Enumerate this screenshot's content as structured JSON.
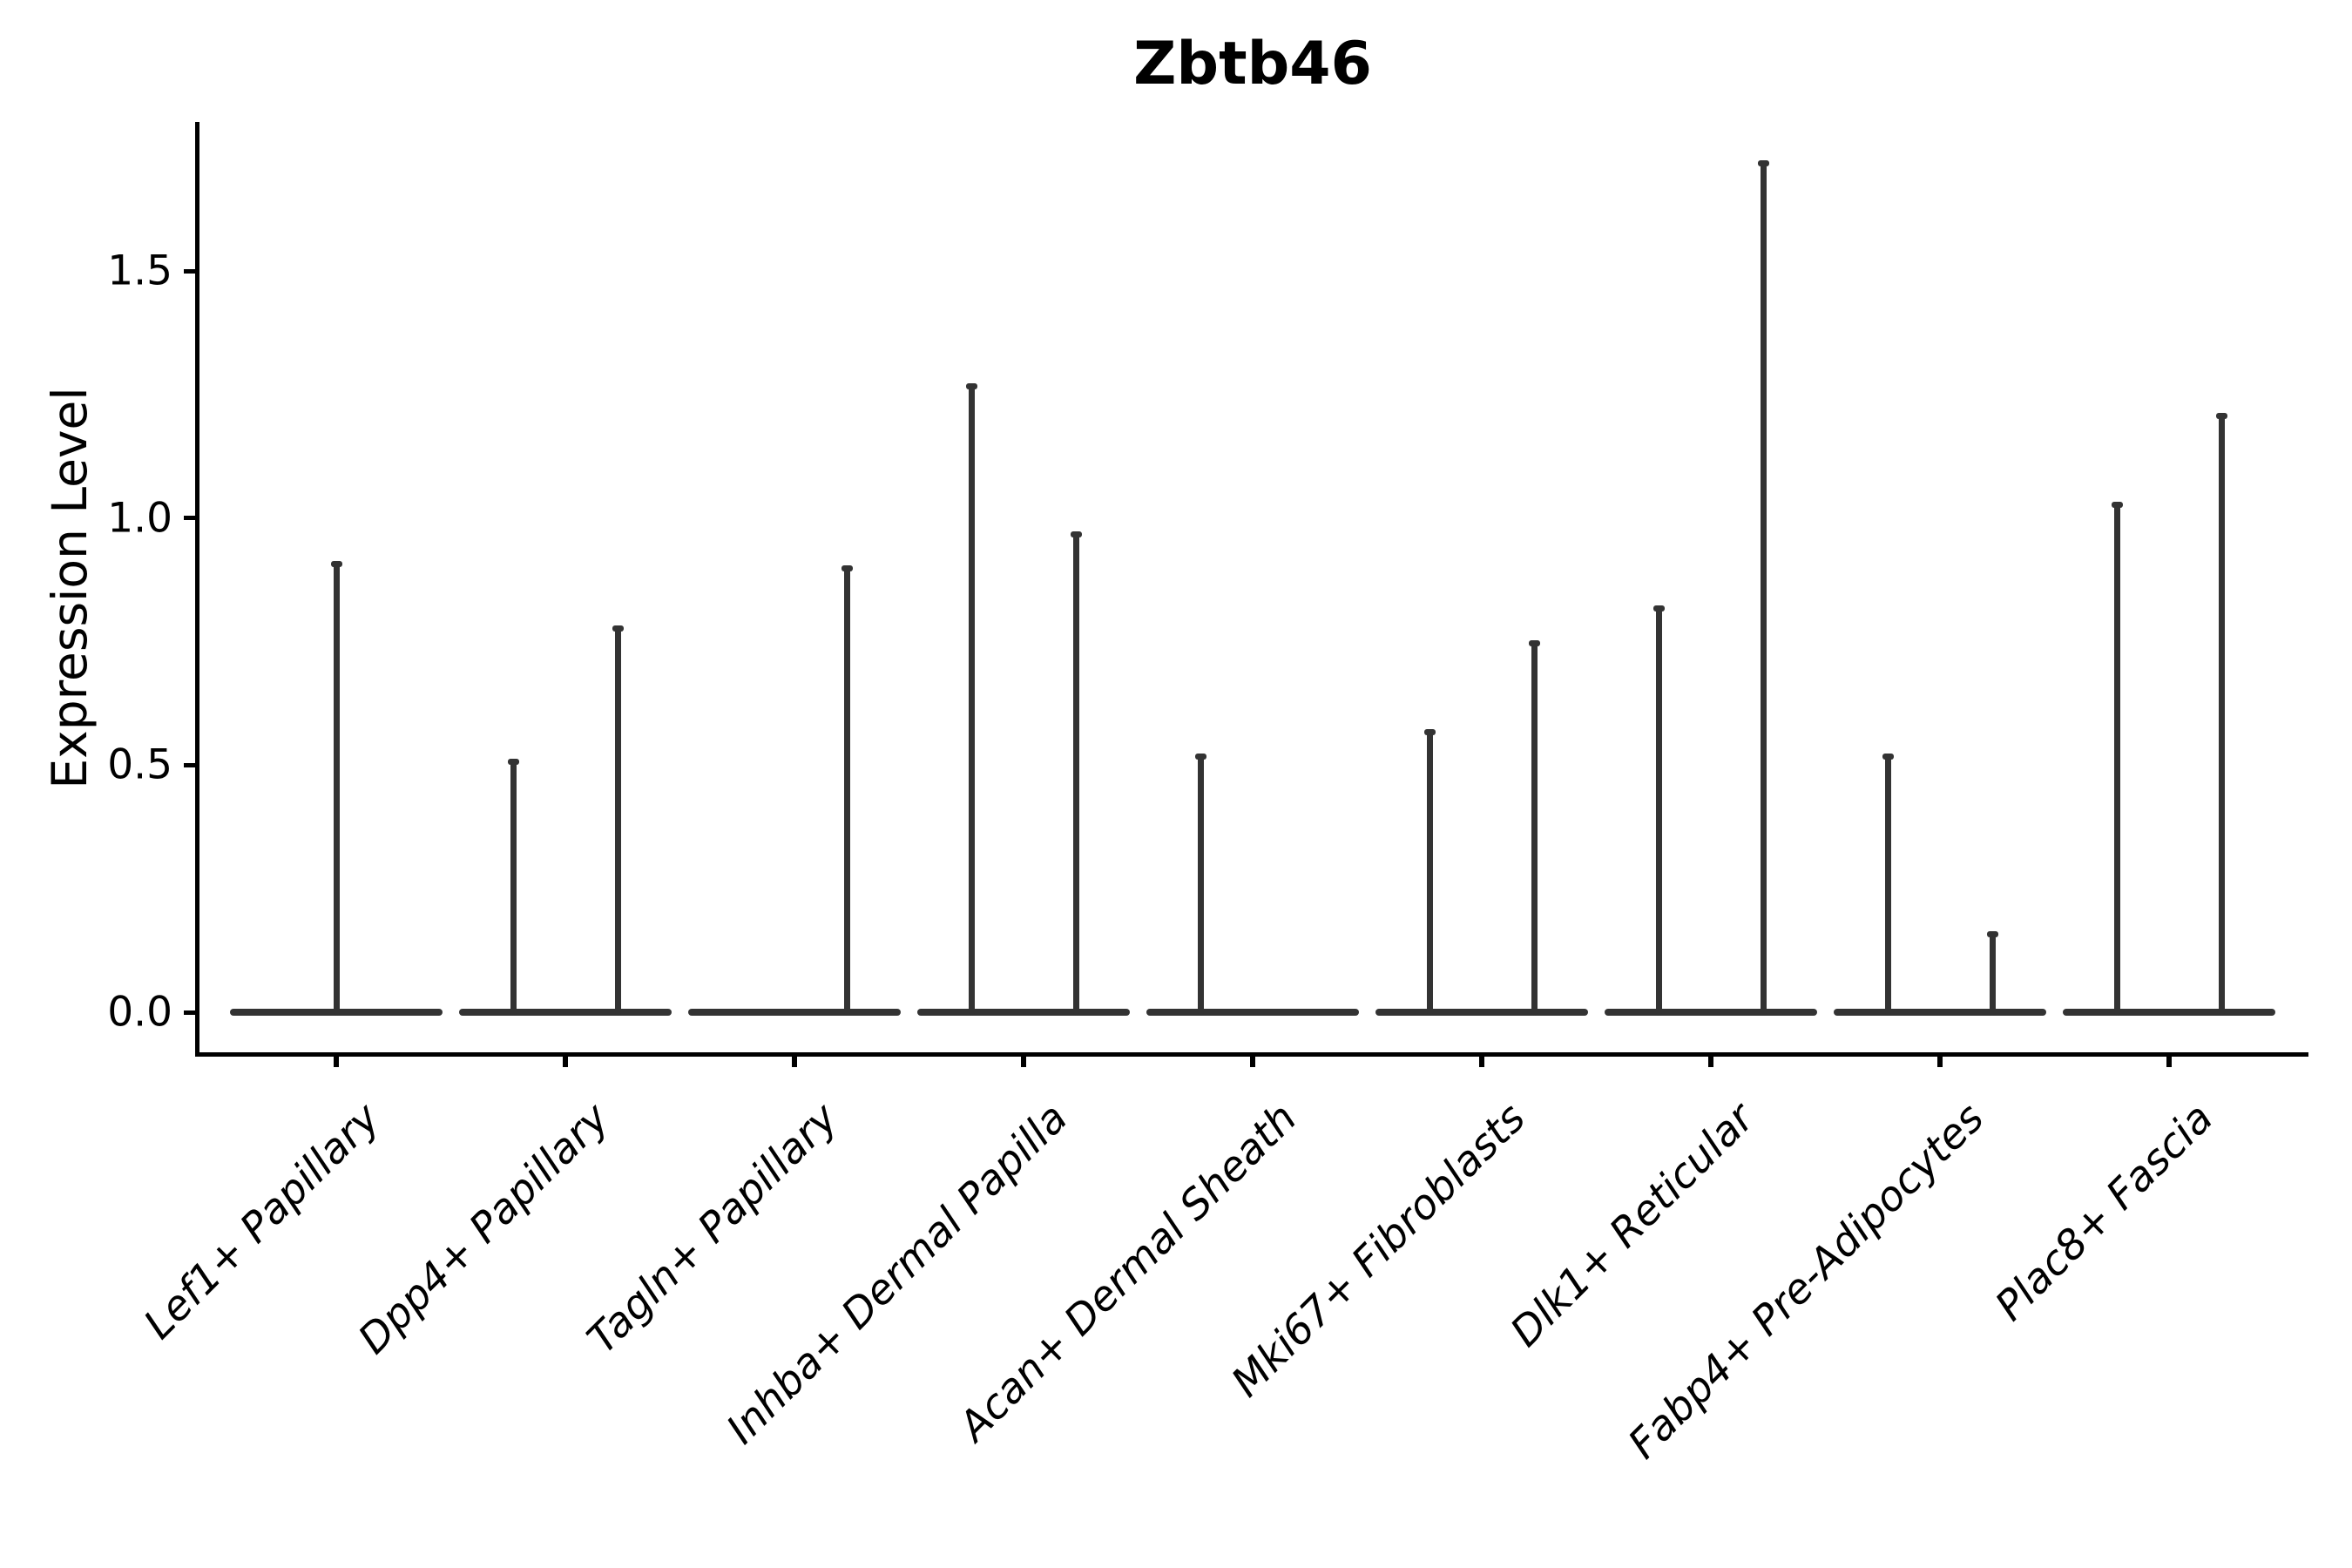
{
  "title": "Zbtb46",
  "chart_data": {
    "type": "violin",
    "title": "Zbtb46",
    "ylabel": "Expression Level",
    "xlabel": "",
    "ylim": [
      0,
      1.8
    ],
    "ytick_labels": [
      "0.0",
      "0.5",
      "1.0",
      "1.5"
    ],
    "ytick_values": [
      0.0,
      0.5,
      1.0,
      1.5
    ],
    "grid": false,
    "legend": "none",
    "x_axis_style": "category ticks, labels rotated 45deg, italic",
    "categories": [
      "Lef1+ Papillary",
      "Dpp4+ Papillary",
      "Tagln+ Papillary",
      "Inhba+ Dermal Papilla",
      "Acan+ Dermal Sheath",
      "Mki67+ Fibroblasts",
      "Dlk1+ Reticular",
      "Fabp4+ Pre-Adipocytes",
      "Plac8+ Fascia"
    ],
    "violins": [
      {
        "category": "Lef1+ Papillary",
        "baseline_value": 0,
        "spikes": [
          {
            "position": "center",
            "max_expression": 0.91
          }
        ]
      },
      {
        "category": "Dpp4+ Papillary",
        "baseline_value": 0,
        "spikes": [
          {
            "position": "left",
            "max_expression": 0.51
          },
          {
            "position": "right",
            "max_expression": 0.78
          }
        ]
      },
      {
        "category": "Tagln+ Papillary",
        "baseline_value": 0,
        "spikes": [
          {
            "position": "right",
            "max_expression": 0.9
          }
        ]
      },
      {
        "category": "Inhba+ Dermal Papilla",
        "baseline_value": 0,
        "spikes": [
          {
            "position": "left",
            "max_expression": 1.27
          },
          {
            "position": "right",
            "max_expression": 0.97
          }
        ]
      },
      {
        "category": "Acan+ Dermal Sheath",
        "baseline_value": 0,
        "spikes": [
          {
            "position": "left",
            "max_expression": 0.52
          }
        ]
      },
      {
        "category": "Mki67+ Fibroblasts",
        "baseline_value": 0,
        "spikes": [
          {
            "position": "left",
            "max_expression": 0.57
          },
          {
            "position": "right",
            "max_expression": 0.75
          }
        ]
      },
      {
        "category": "Dlk1+ Reticular",
        "baseline_value": 0,
        "spikes": [
          {
            "position": "left",
            "max_expression": 0.82
          },
          {
            "position": "right",
            "max_expression": 1.72
          }
        ]
      },
      {
        "category": "Fabp4+ Pre-Adipocytes",
        "baseline_value": 0,
        "spikes": [
          {
            "position": "left",
            "max_expression": 0.52
          },
          {
            "position": "right",
            "max_expression": 0.16
          }
        ]
      },
      {
        "category": "Plac8+ Fascia",
        "baseline_value": 0,
        "spikes": [
          {
            "position": "left",
            "max_expression": 1.03
          },
          {
            "position": "right",
            "max_expression": 1.21
          }
        ]
      }
    ],
    "colors": {
      "violin_line": "#333333",
      "axis": "#000000",
      "text": "#000000",
      "background": "#ffffff"
    }
  }
}
